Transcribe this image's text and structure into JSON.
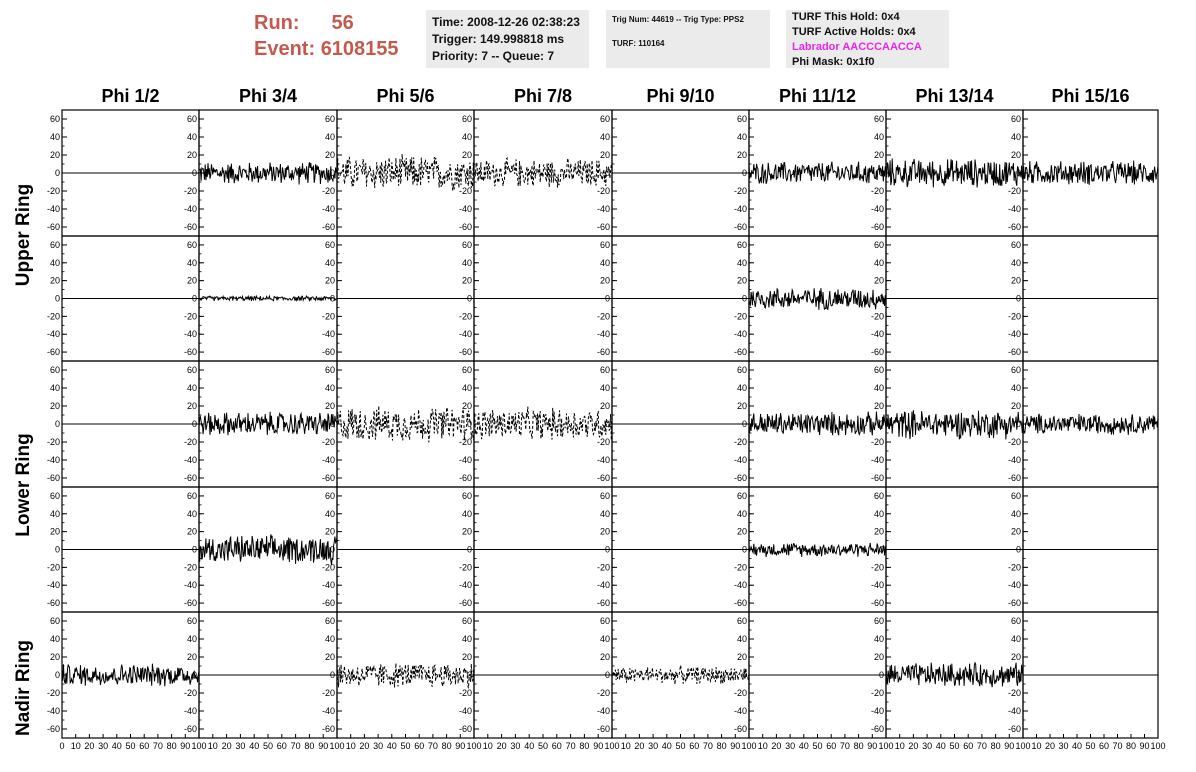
{
  "header": {
    "run_label": "Run:",
    "run_value": "56",
    "event_label": "Event:",
    "event_value": "6108155",
    "time": "Time: 2008-12-26 02:38:23",
    "trigger": "Trigger: 149.998818 ms",
    "priority": "Priority: 7 -- Queue: 7",
    "trig_num": "Trig Num: 44619 -- Trig Type: PPS2",
    "turf": "TURF: 110164",
    "turf_hold": "TURF This Hold: 0x4",
    "turf_active": "TURF Active Holds: 0x4",
    "labrador": "Labrador AACCCAACCA",
    "phi_mask": "Phi Mask: 0x1f0"
  },
  "colors": {
    "header_red": "#c45a4e",
    "labrador_magenta": "#e629e6",
    "box_bg": "#ebebeb"
  },
  "columns": [
    "Phi 1/2",
    "Phi 3/4",
    "Phi 5/6",
    "Phi 7/8",
    "Phi 9/10",
    "Phi 11/12",
    "Phi 13/14",
    "Phi 15/16"
  ],
  "rings": [
    "Upper Ring",
    "Lower Ring",
    "Nadir Ring"
  ],
  "chart_data": {
    "type": "line",
    "grid": "8 columns x 5 rows of small waveform panels",
    "xlim": [
      0,
      100
    ],
    "ylim": [
      -70,
      70
    ],
    "x_ticks": [
      0,
      10,
      20,
      30,
      40,
      50,
      60,
      70,
      80,
      90,
      100
    ],
    "y_ticks": [
      -60,
      -40,
      -20,
      0,
      20,
      40,
      60
    ],
    "panels_note": "rows 0-1 Upper Ring, rows 2-3 Lower Ring, row 4 Nadir Ring; style solid or dashed; amp is approximate peak noise amplitude; flat means no signal (line at 0)",
    "panels": [
      [
        {
          "style": "flat"
        },
        {
          "style": "solid",
          "amp": 14
        },
        {
          "style": "dashed",
          "amp": 22
        },
        {
          "style": "dashed",
          "amp": 18
        },
        {
          "style": "flat"
        },
        {
          "style": "solid",
          "amp": 14
        },
        {
          "style": "solid",
          "amp": 18
        },
        {
          "style": "solid",
          "amp": 15
        }
      ],
      [
        {
          "style": "flat"
        },
        {
          "style": "solid",
          "amp": 3
        },
        {
          "style": "flat"
        },
        {
          "style": "flat"
        },
        {
          "style": "flat"
        },
        {
          "style": "solid",
          "amp": 14
        },
        {
          "style": "flat"
        },
        {
          "style": "flat"
        }
      ],
      [
        {
          "style": "flat"
        },
        {
          "style": "solid",
          "amp": 15
        },
        {
          "style": "dashed",
          "amp": 22
        },
        {
          "style": "dashed",
          "amp": 20
        },
        {
          "style": "flat"
        },
        {
          "style": "solid",
          "amp": 15
        },
        {
          "style": "solid",
          "amp": 18
        },
        {
          "style": "solid",
          "amp": 13
        }
      ],
      [
        {
          "style": "flat"
        },
        {
          "style": "solid",
          "amp": 18
        },
        {
          "style": "flat"
        },
        {
          "style": "flat"
        },
        {
          "style": "flat"
        },
        {
          "style": "solid",
          "amp": 9
        },
        {
          "style": "flat"
        },
        {
          "style": "flat"
        }
      ],
      [
        {
          "style": "solid",
          "amp": 14
        },
        {
          "style": "flat"
        },
        {
          "style": "dashed",
          "amp": 16
        },
        {
          "style": "flat"
        },
        {
          "style": "dashed",
          "amp": 11
        },
        {
          "style": "flat"
        },
        {
          "style": "solid",
          "amp": 15
        },
        {
          "style": "flat"
        }
      ]
    ]
  }
}
